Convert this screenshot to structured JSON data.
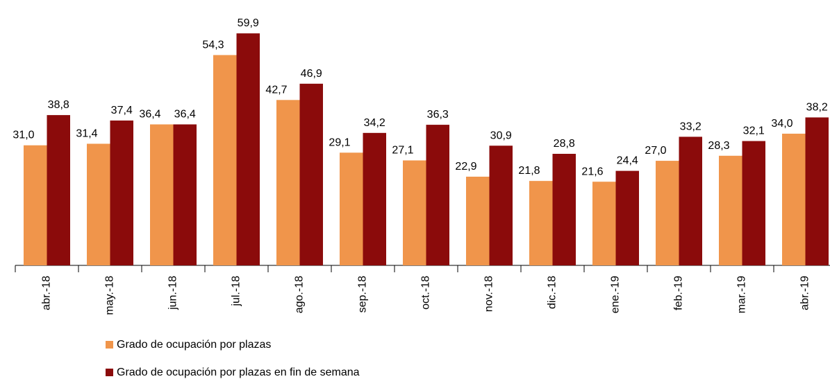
{
  "chart_data": {
    "type": "bar",
    "categories": [
      "abr.-18",
      "may.-18",
      "jun.-18",
      "jul.-18",
      "ago.-18",
      "sep.-18",
      "oct.-18",
      "nov.-18",
      "dic.-18",
      "ene.-19",
      "feb.-19",
      "mar.-19",
      "abr.-19"
    ],
    "series": [
      {
        "name": "Grado de ocupación por plazas",
        "color": "#f0954b",
        "values": [
          31.0,
          31.4,
          36.4,
          54.3,
          42.7,
          29.1,
          27.1,
          22.9,
          21.8,
          21.6,
          27.0,
          28.3,
          34.0
        ],
        "value_labels": [
          "31,0",
          "31,4",
          "36,4",
          "54,3",
          "42,7",
          "29,1",
          "27,1",
          "22,9",
          "21,8",
          "21,6",
          "27,0",
          "28,3",
          "34,0"
        ]
      },
      {
        "name": "Grado de ocupación por plazas en fin de semana",
        "color": "#8b0b0b",
        "values": [
          38.8,
          37.4,
          36.4,
          59.9,
          46.9,
          34.2,
          36.3,
          30.9,
          28.8,
          24.4,
          33.2,
          32.1,
          38.2
        ],
        "value_labels": [
          "38,8",
          "37,4",
          "36,4",
          "59,9",
          "46,9",
          "34,2",
          "36,3",
          "30,9",
          "28,8",
          "24,4",
          "33,2",
          "32,1",
          "38,2"
        ]
      }
    ],
    "ylim": [
      0,
      60
    ]
  }
}
